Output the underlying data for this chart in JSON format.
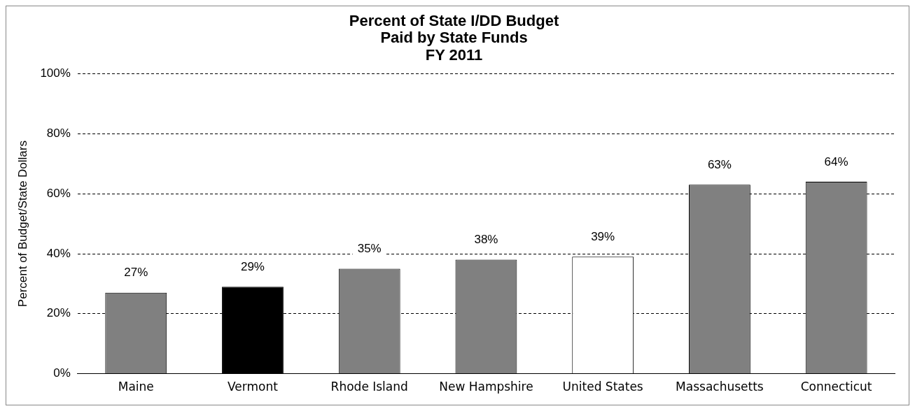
{
  "chart_data": {
    "type": "bar",
    "title": "Percent of State I/DD Budget\nPaid by State Funds\nFY 2011",
    "ylabel": "Percent of Budget/State Dollars",
    "categories": [
      "Maine",
      "Vermont",
      "Rhode Island",
      "New Hampshire",
      "United States",
      "Massachusetts",
      "Connecticut"
    ],
    "values": [
      27,
      29,
      35,
      38,
      39,
      63,
      64
    ],
    "colors": [
      "#808080",
      "#000000",
      "#808080",
      "#808080",
      "#ffffff",
      "#808080",
      "#808080"
    ],
    "value_labels": [
      "27%",
      "29%",
      "35%",
      "38%",
      "39%",
      "63%",
      "64%"
    ],
    "ylim": [
      0,
      100
    ],
    "yticks": [
      {
        "value": 0,
        "label": "0%"
      },
      {
        "value": 20,
        "label": "20%"
      },
      {
        "value": 40,
        "label": "40%"
      },
      {
        "value": 60,
        "label": "60%"
      },
      {
        "value": 80,
        "label": "80%"
      },
      {
        "value": 100,
        "label": "100%"
      }
    ],
    "grid": "y",
    "legend": false
  }
}
